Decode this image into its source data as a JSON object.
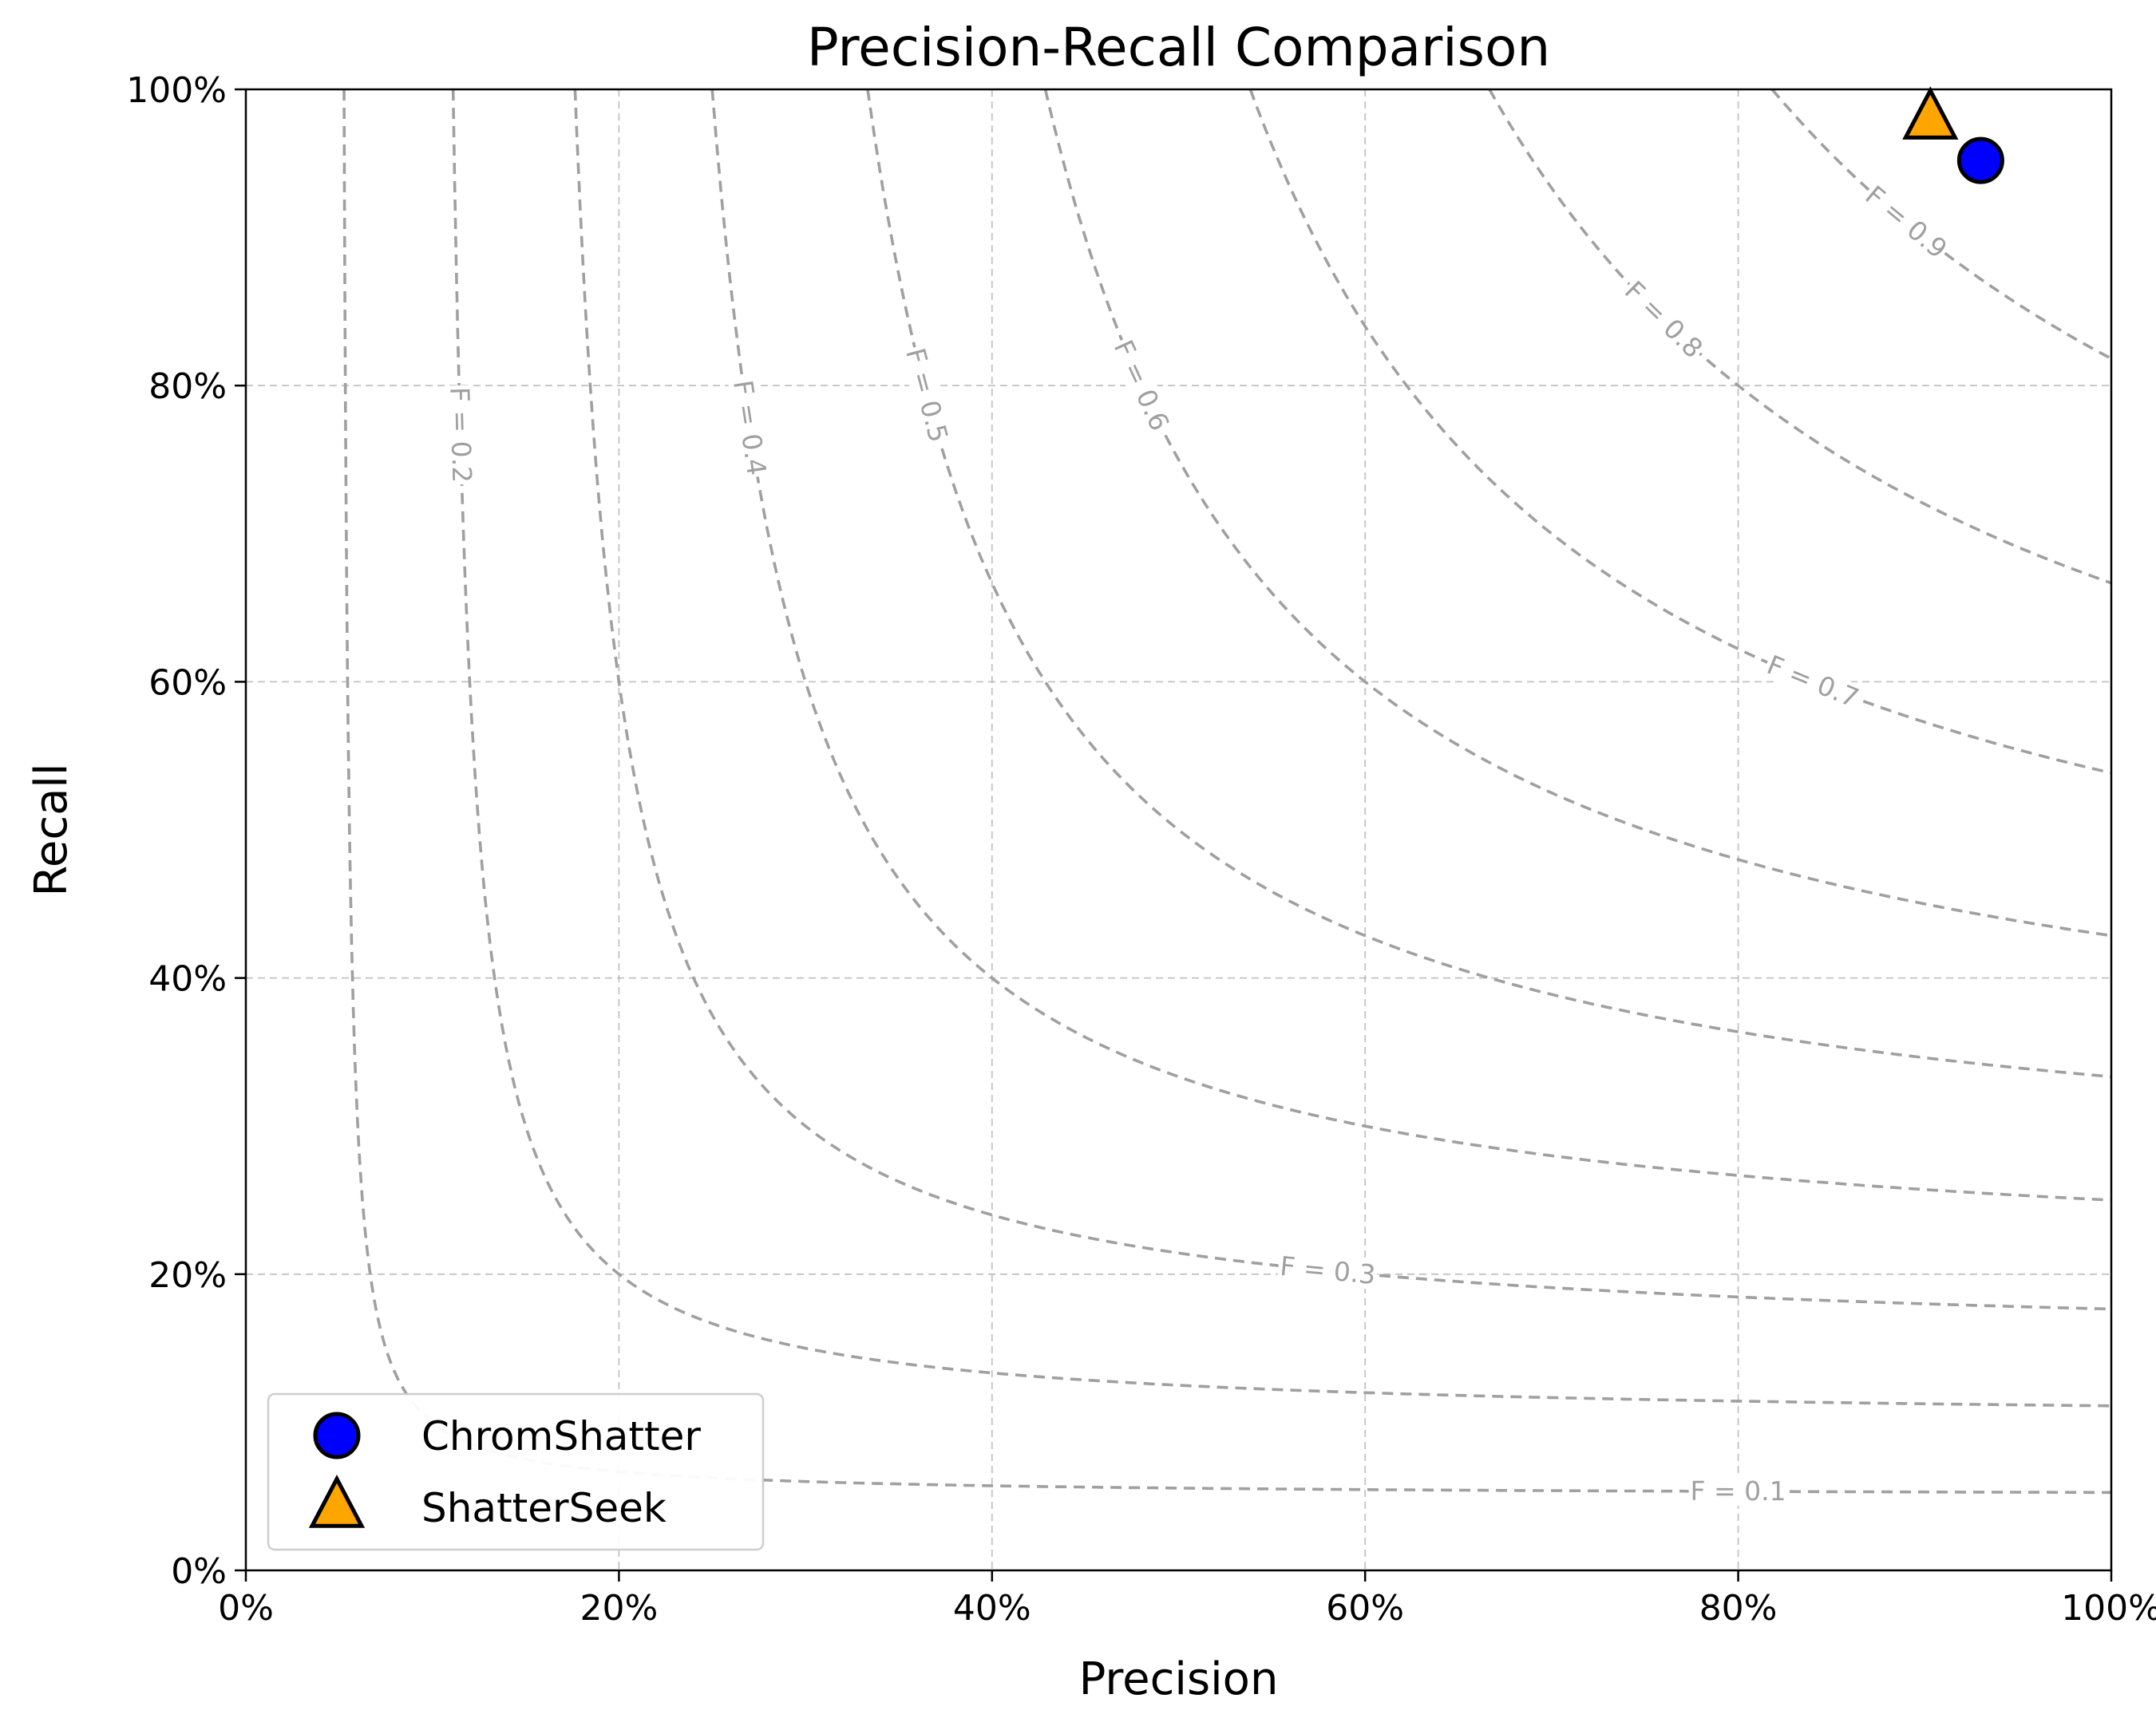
{
  "chart_data": {
    "type": "scatter",
    "title": "Precision-Recall Comparison",
    "xlabel": "Precision",
    "ylabel": "Recall",
    "xlim": [
      0,
      1
    ],
    "ylim": [
      0,
      1
    ],
    "x_ticks": [
      0,
      0.2,
      0.4,
      0.6,
      0.8,
      1.0
    ],
    "y_ticks": [
      0,
      0.2,
      0.4,
      0.6,
      0.8,
      1.0
    ],
    "x_tick_labels": [
      "0%",
      "20%",
      "40%",
      "60%",
      "80%",
      "100%"
    ],
    "y_tick_labels": [
      "0%",
      "20%",
      "40%",
      "60%",
      "80%",
      "100%"
    ],
    "grid": true,
    "legend_position": "lower-left",
    "series": [
      {
        "name": "ChromShatter",
        "marker": "circle",
        "color": "#0000ff",
        "points": [
          {
            "x": 0.93,
            "y": 0.952
          }
        ]
      },
      {
        "name": "ShatterSeek",
        "marker": "triangle",
        "color": "#ffa500",
        "points": [
          {
            "x": 0.903,
            "y": 0.98
          }
        ]
      }
    ],
    "f_score_contours": {
      "values": [
        0.1,
        0.2,
        0.3,
        0.4,
        0.5,
        0.6,
        0.7,
        0.8,
        0.9
      ],
      "labels": [
        "F = 0.1",
        "F = 0.2",
        "F = 0.3",
        "F = 0.4",
        "F = 0.5",
        "F = 0.6",
        "F = 0.7",
        "F = 0.8",
        "F = 0.9"
      ],
      "color": "#a0a0a0",
      "style": "dashed"
    }
  }
}
